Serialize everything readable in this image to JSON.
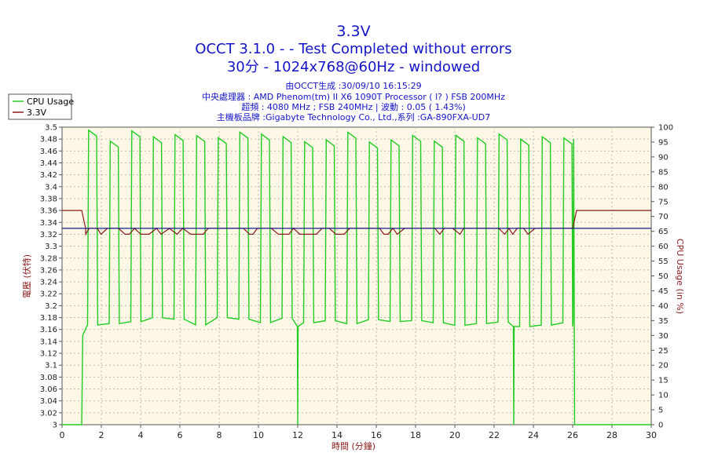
{
  "chart_data": {
    "type": "line",
    "title": "3.3V",
    "subtitle_lines": [
      "OCCT 3.1.0 -  - Test Completed without errors",
      "30分 - 1024x768@60Hz - windowed"
    ],
    "info_lines": [
      "由OCCT生成 :30/09/10 16:15:29",
      "中央處理器 : AMD Phenom(tm) II X6 1090T Processor (   l? ) FSB 200MHz",
      "超頻 : 4080 MHz ; FSB 240MHz | 波動 : 0.05 ( 1.43%)",
      "主機板品牌 :Gigabyte Technology Co., Ltd.,系列 :GA-890FXA-UD7"
    ],
    "xlabel": "時間 (分鐘)",
    "ylabel_left": "電壓 (伏特)",
    "ylabel_right": "CPU Usage (in %)",
    "xlim": [
      0,
      30
    ],
    "ylim_left": [
      3.0,
      3.5
    ],
    "ylim_right": [
      0,
      100
    ],
    "x_ticks": [
      "0",
      "2",
      "4",
      "6",
      "8",
      "10",
      "12",
      "14",
      "16",
      "18",
      "20",
      "22",
      "24",
      "26",
      "28",
      "30"
    ],
    "y_left_ticks": [
      "3",
      "3.02",
      "3.04",
      "3.06",
      "3.08",
      "3.1",
      "3.12",
      "3.14",
      "3.16",
      "3.18",
      "3.2",
      "3.22",
      "3.24",
      "3.26",
      "3.28",
      "3.3",
      "3.32",
      "3.34",
      "3.36",
      "3.38",
      "3.4",
      "3.42",
      "3.44",
      "3.46",
      "3.48",
      "3.5"
    ],
    "y_right_ticks": [
      "0",
      "5",
      "10",
      "15",
      "20",
      "25",
      "30",
      "35",
      "40",
      "45",
      "50",
      "55",
      "60",
      "65",
      "70",
      "75",
      "80",
      "85",
      "90",
      "95",
      "100"
    ],
    "grid": true,
    "legend_position": "top-left",
    "colors": {
      "cpu": "#22cc22",
      "voltage": "#8b1a1a",
      "avg": "#1a1a8b",
      "plot_bg": "#fdf8e6",
      "title": "#1414c8"
    },
    "series": [
      {
        "name": "CPU Usage",
        "axis": "right",
        "description": "idle ~0% until 1.0 min, then oscillates between ~33% and ~99% roughly every 1.1 min until 26.0 min, then 0%",
        "idle_before": 1.0,
        "load_start": 1.3,
        "load_end": 26.0,
        "period_min": 1.1,
        "low": 33,
        "high": 99,
        "dips": [
          {
            "x": 12.0,
            "y": 0
          },
          {
            "x": 23.0,
            "y": 0
          }
        ]
      },
      {
        "name": "3.3V",
        "axis": "left",
        "description": "3.36 V before 1.0 min and after 26.2 min; under load fluctuates 3.32–3.33 V",
        "x": [
          0,
          1.0,
          1.2,
          26.0,
          26.2,
          30
        ],
        "y": [
          3.36,
          3.36,
          3.33,
          3.33,
          3.36,
          3.36
        ],
        "load_low": 3.32,
        "load_high": 3.33
      }
    ],
    "reference_line": {
      "y": 3.33,
      "axis": "left"
    }
  }
}
